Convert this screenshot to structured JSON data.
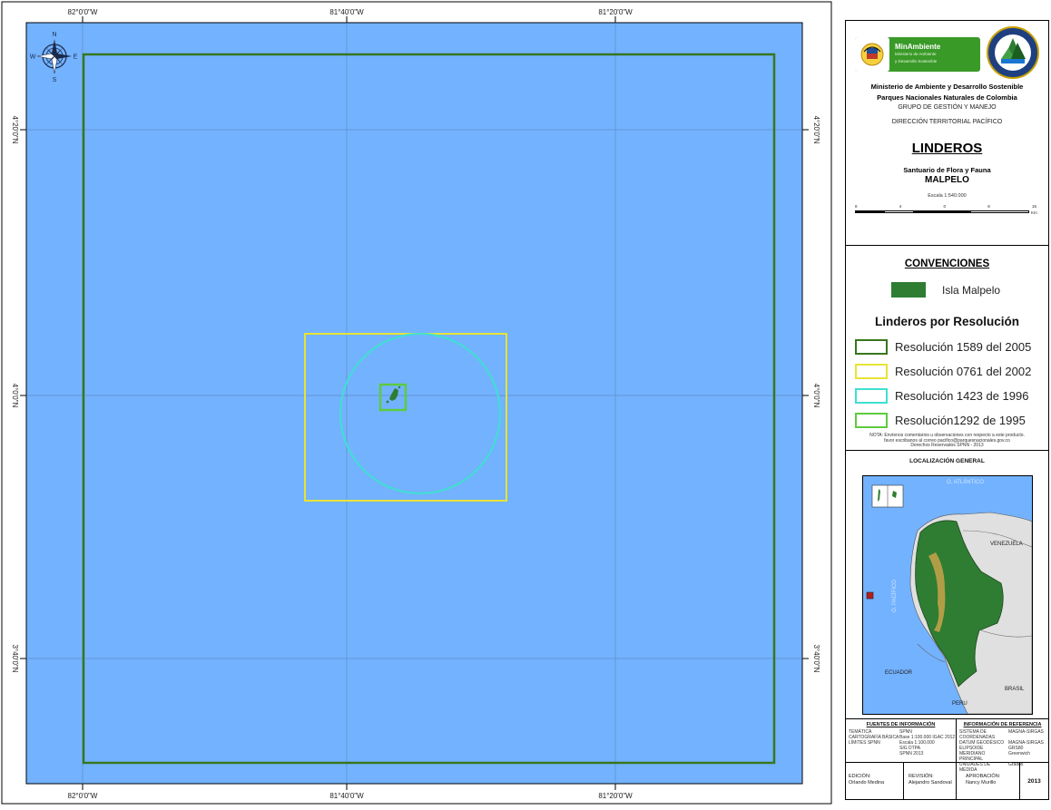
{
  "map": {
    "top_ticks": [
      "82°0'0\"W",
      "81°40'0\"W",
      "81°20'0\"W"
    ],
    "bottom_ticks": [
      "82°0'0\"W",
      "81°40'0\"W",
      "81°20'0\"W"
    ],
    "left_ticks": [
      "4°20'0\"N",
      "4°0'0\"N",
      "3°40'0\"N"
    ],
    "right_ticks": [
      "4°20'0\"N",
      "4°0'0\"N",
      "3°40'0\"N"
    ],
    "compass": {
      "n": "N",
      "s": "S",
      "e": "E",
      "w": "W"
    },
    "colors": {
      "ocean": "#73B2FF",
      "res_2005": "#38761D",
      "res_2002": "#E8E337",
      "res_1996": "#3FE0D0",
      "res_1995": "#5CCB3F",
      "island": "#2E7D32"
    }
  },
  "panel": {
    "logo": {
      "brand": "MinAmbiente",
      "sub1": "Ministerio de Ambiente",
      "sub2": "y Desarrollo Sostenible"
    },
    "ministry": "Ministerio de Ambiente y Desarrollo Sostenible",
    "parques": "Parques Nacionales Naturales de Colombia",
    "grupo": "GRUPO DE GESTIÓN Y MANEJO",
    "direccion": "DIRECCIÓN TERRITORIAL PACÍFICO",
    "title": "LINDEROS",
    "subtitle": "Santuario de Flora y Fauna",
    "area_name": "MALPELO",
    "scale_text": "Escala 1:540.000",
    "scale_ticks": [
      "8",
      "4",
      "0",
      "8",
      "16"
    ],
    "scale_unit": "Km",
    "conventions_title": "CONVENCIONES",
    "island_label": "Isla Malpelo",
    "linderos_title": "Linderos por Resolución",
    "legend": [
      {
        "label": "Resolución 1589 del 2005",
        "color": "#38761D"
      },
      {
        "label": "Resolución 0761 del 2002",
        "color": "#E8E337"
      },
      {
        "label": "Resolución 1423 de 1996",
        "color": "#3FE0D0"
      },
      {
        "label": "Resolución1292 de 1995",
        "color": "#5CCB3F"
      }
    ],
    "note_1": "NOTA: Envíenos comentarios u observaciones con respecto a este producto.",
    "note_2": "favor escribanos al correo pacifico@parquesnacionales.gov.co",
    "note_3": "Derechos Reservados SPNN - 2013",
    "loc_title": "LOCALIZACIÓN GENERAL",
    "loc_labels": {
      "atlantic": "O. ATLÁNTICO",
      "pacific": "O. PACÍFICO",
      "venezuela": "VENEZUELA",
      "ecuador": "ECUADOR",
      "brasil": "BRASIL",
      "peru": "PERU"
    },
    "fuentes_title": "FUENTES DE INFORMACIÓN",
    "fuentes": [
      {
        "k": "TEMÁTICA",
        "v": "SPNN"
      },
      {
        "k": "CARTOGRAFÍA BÁSICA",
        "v": "Base 1:100.000 IGAC 2012"
      },
      {
        "k": "LÍMITES SPNN",
        "v": "Escala 1:100.000"
      },
      {
        "k": "",
        "v": "SIG DTPA"
      },
      {
        "k": "",
        "v": "SPNN 2013"
      }
    ],
    "ref_title": "INFORMACIÓN DE REFERENCIA",
    "ref": [
      {
        "k": "SISTEMA DE COORDENADAS",
        "v": "MAGNA-SIRGAS"
      },
      {
        "k": "DATUM GEODÉSICO",
        "v": "MAGNA-SIRGAS"
      },
      {
        "k": "ELIPSOIDE",
        "v": "GRS80"
      },
      {
        "k": "MERIDIANO PRINCIPAL",
        "v": "Greenwich"
      },
      {
        "k": "UNIDADES DE MEDIDA",
        "v": "Grados"
      }
    ],
    "footer": {
      "edicion_label": "EDICIÓN:",
      "edicion_name": "Orlando Medina",
      "revision_label": "REVISIÓN:",
      "revision_name": "Alejandro Sandoval",
      "aprobacion_label": "APROBACIÓN:",
      "aprobacion_name": "Nancy Murillo",
      "year": "2013"
    }
  }
}
